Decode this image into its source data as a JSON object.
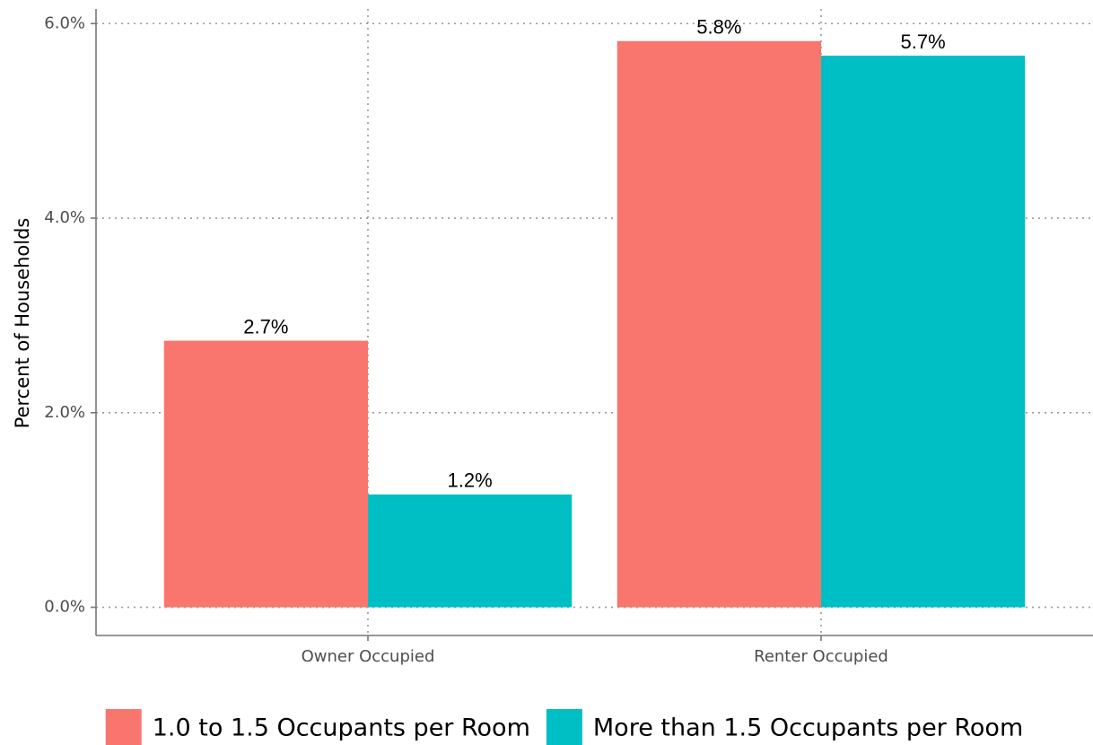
{
  "chart_data": {
    "type": "bar",
    "y_label": "Percent of Households",
    "categories": [
      "Owner Occupied",
      "Renter Occupied"
    ],
    "series": [
      {
        "name": "1.0 to 1.5 Occupants per Room",
        "color": "#f8766d",
        "values": [
          2.74,
          5.82
        ],
        "value_labels": [
          "2.7%",
          "5.8%"
        ]
      },
      {
        "name": "More than 1.5 Occupants per Room",
        "color": "#00bfc4",
        "values": [
          1.16,
          5.67
        ],
        "value_labels": [
          "1.2%",
          "5.7%"
        ]
      }
    ],
    "ylim": [
      -0.29,
      6.15
    ],
    "yticks": [
      {
        "value": 0,
        "label": "0.0%"
      },
      {
        "value": 2,
        "label": "2.0%"
      },
      {
        "value": 4,
        "label": "4.0%"
      },
      {
        "value": 6,
        "label": "6.0%"
      }
    ],
    "grid": true,
    "legend": "bottom"
  }
}
